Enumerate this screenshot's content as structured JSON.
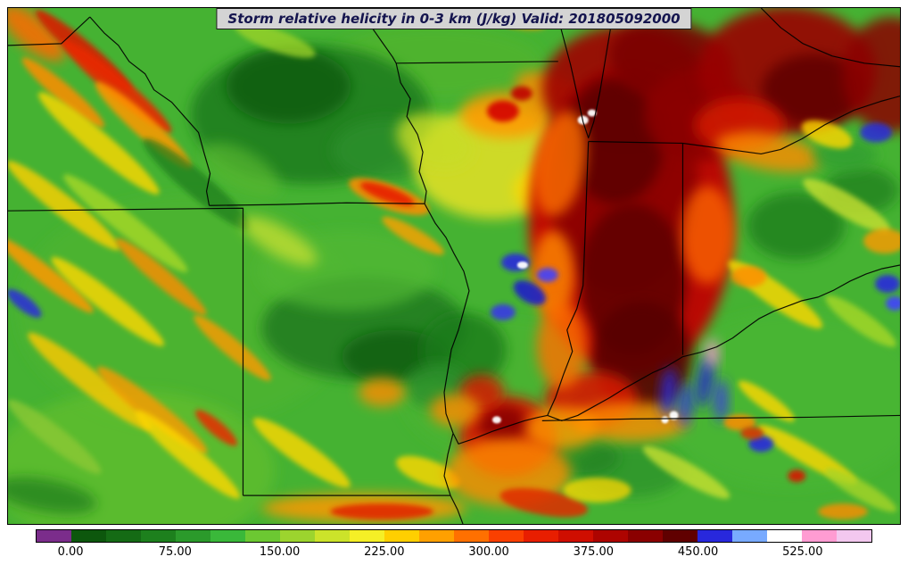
{
  "title": "Storm relative helicity in 0-3 km (J/kg) Valid: 201805092000",
  "colorbar": {
    "min": -25,
    "max": 575,
    "tick_values": [
      0,
      75,
      150,
      225,
      300,
      375,
      450,
      525
    ],
    "tick_labels": [
      "0.00",
      "75.00",
      "150.00",
      "225.00",
      "300.00",
      "375.00",
      "450.00",
      "525.00"
    ],
    "segment_colors": [
      "#7b2d8b",
      "#0d570d",
      "#156b15",
      "#1d801d",
      "#2b9a2b",
      "#3ab83a",
      "#6cc832",
      "#9cd42e",
      "#cce32a",
      "#f5ef26",
      "#ffcf00",
      "#ffa000",
      "#ff7000",
      "#fa4000",
      "#e81e00",
      "#cf0e00",
      "#ad0400",
      "#8a0000",
      "#600000",
      "#2828dc",
      "#78aaff",
      "#ffffff",
      "#ff9cd2",
      "#f3c8ef"
    ]
  },
  "map": {
    "base_color": "#45b232",
    "valid_time_label": "Valid: 201805092000",
    "blobs": [
      [
        200,
        340,
        190,
        130,
        0,
        "#4fb42e",
        0.55
      ],
      [
        140,
        520,
        160,
        90,
        0,
        "#6ec32c",
        0.5
      ],
      [
        560,
        430,
        120,
        80,
        0,
        "#4fb42e",
        0.4
      ],
      [
        880,
        440,
        150,
        100,
        0,
        "#49b832",
        0.45
      ],
      [
        480,
        60,
        120,
        40,
        0,
        "#57b62e",
        0.5
      ],
      [
        340,
        120,
        135,
        78,
        0,
        "#1e7e1e",
        0.9
      ],
      [
        315,
        88,
        70,
        42,
        0,
        "#135c13",
        0.85
      ],
      [
        425,
        160,
        60,
        35,
        0,
        "#2a8f2a",
        0.8
      ],
      [
        400,
        360,
        115,
        58,
        0,
        "#1d7a1d",
        0.85
      ],
      [
        435,
        392,
        60,
        30,
        0,
        "#135c13",
        0.8
      ],
      [
        380,
        295,
        100,
        45,
        0,
        "#52b832",
        0.7
      ],
      [
        512,
        385,
        48,
        42,
        0,
        "#1d7a1d",
        0.8
      ],
      [
        482,
        425,
        36,
        26,
        0,
        "#2a8f2a",
        0.8
      ],
      [
        885,
        245,
        55,
        38,
        0,
        "#1d7a1d",
        0.75
      ],
      [
        958,
        205,
        42,
        26,
        0,
        "#1d7a1d",
        0.7
      ],
      [
        700,
        520,
        60,
        30,
        0,
        "#2a8f2a",
        0.7
      ],
      [
        645,
        505,
        42,
        22,
        0,
        "#1d7a1d",
        0.6
      ],
      [
        545,
        175,
        90,
        62,
        0,
        "#e6e226",
        0.85
      ],
      [
        480,
        150,
        45,
        30,
        20,
        "#c8dc28",
        0.8
      ],
      [
        620,
        205,
        52,
        32,
        0,
        "#ffd700",
        0.8
      ],
      [
        560,
        120,
        52,
        26,
        0,
        "#ff9800",
        0.85
      ],
      [
        610,
        95,
        42,
        20,
        20,
        "#ff8c00",
        0.8
      ],
      [
        632,
        255,
        40,
        22,
        0,
        "#ff8c00",
        0.8
      ],
      [
        700,
        240,
        115,
        175,
        0,
        "#c00000",
        0.95
      ],
      [
        695,
        90,
        95,
        70,
        0,
        "#a00000",
        0.9
      ],
      [
        690,
        195,
        85,
        125,
        0,
        "#8a0000",
        0.9
      ],
      [
        682,
        150,
        55,
        70,
        0,
        "#5c0000",
        0.9
      ],
      [
        702,
        305,
        60,
        85,
        0,
        "#600000",
        0.9
      ],
      [
        712,
        392,
        56,
        62,
        0,
        "#560000",
        0.9
      ],
      [
        745,
        60,
        70,
        45,
        10,
        "#7a0000",
        0.9
      ],
      [
        775,
        120,
        60,
        52,
        0,
        "#8a0000",
        0.9
      ],
      [
        655,
        440,
        52,
        32,
        0,
        "#d41400",
        0.9
      ],
      [
        700,
        465,
        65,
        22,
        0,
        "#ff8c00",
        0.8
      ],
      [
        620,
        175,
        28,
        60,
        10,
        "#ff7000",
        0.8
      ],
      [
        612,
        300,
        24,
        50,
        0,
        "#ff8c00",
        0.8
      ],
      [
        622,
        380,
        28,
        48,
        0,
        "#ff7000",
        0.8
      ],
      [
        786,
        255,
        30,
        55,
        0,
        "#ff6a00",
        0.75
      ],
      [
        875,
        70,
        100,
        72,
        0,
        "#9a0000",
        0.9
      ],
      [
        905,
        92,
        58,
        40,
        0,
        "#600000",
        0.9
      ],
      [
        822,
        132,
        50,
        30,
        0,
        "#d41400",
        0.85
      ],
      [
        855,
        162,
        60,
        20,
        10,
        "#ff8c00",
        0.8
      ],
      [
        992,
        75,
        55,
        65,
        0,
        "#8a0000",
        0.85
      ],
      [
        940,
        165,
        36,
        18,
        0,
        "#2f9e2f",
        0.8
      ],
      [
        920,
        142,
        30,
        13,
        20,
        "#ffd700",
        0.8
      ],
      [
        975,
        140,
        18,
        11,
        0,
        "#2828dc",
        0.85
      ],
      [
        28,
        28,
        45,
        18,
        40,
        "#ff6a00",
        0.85
      ],
      [
        85,
        48,
        70,
        11,
        40,
        "#d41f00",
        0.9
      ],
      [
        122,
        88,
        80,
        12,
        40,
        "#e82800",
        0.9
      ],
      [
        62,
        95,
        60,
        10,
        40,
        "#ff8c00",
        0.85
      ],
      [
        152,
        132,
        72,
        12,
        42,
        "#ff9800",
        0.85
      ],
      [
        102,
        152,
        88,
        13,
        40,
        "#ffd700",
        0.8
      ],
      [
        212,
        198,
        78,
        14,
        40,
        "#1d7a1d",
        0.7
      ],
      [
        62,
        222,
        80,
        12,
        38,
        "#ffd000",
        0.8
      ],
      [
        132,
        242,
        88,
        12,
        38,
        "#a8d828",
        0.8
      ],
      [
        42,
        300,
        68,
        10,
        38,
        "#ff9800",
        0.85
      ],
      [
        112,
        330,
        80,
        12,
        38,
        "#ffd700",
        0.8
      ],
      [
        18,
        332,
        24,
        8,
        38,
        "#2828dc",
        0.85
      ],
      [
        172,
        302,
        66,
        10,
        40,
        "#ff8c00",
        0.8
      ],
      [
        92,
        420,
        88,
        13,
        38,
        "#ffc800",
        0.8
      ],
      [
        162,
        452,
        78,
        12,
        38,
        "#ff9800",
        0.8
      ],
      [
        52,
        482,
        66,
        12,
        38,
        "#8cc832",
        0.8
      ],
      [
        202,
        502,
        76,
        12,
        40,
        "#ffd700",
        0.8
      ],
      [
        234,
        472,
        30,
        8,
        40,
        "#e82800",
        0.85
      ],
      [
        42,
        548,
        58,
        18,
        10,
        "#1d7a1d",
        0.7
      ],
      [
        252,
        382,
        56,
        10,
        40,
        "#ff9800",
        0.8
      ],
      [
        300,
        36,
        48,
        12,
        20,
        "#a0d428",
        0.75
      ],
      [
        262,
        182,
        48,
        22,
        30,
        "#57b62e",
        0.7
      ],
      [
        575,
        14,
        30,
        9,
        10,
        "#ff8c00",
        0.8
      ],
      [
        560,
        16,
        13,
        6,
        20,
        "#e02800",
        0.85
      ],
      [
        428,
        212,
        48,
        14,
        20,
        "#ff8c00",
        0.85
      ],
      [
        426,
        209,
        32,
        8,
        20,
        "#e82000",
        0.9
      ],
      [
        455,
        256,
        40,
        9,
        30,
        "#ffa000",
        0.8
      ],
      [
        305,
        262,
        48,
        16,
        30,
        "#c8e030",
        0.75
      ],
      [
        330,
        500,
        66,
        13,
        35,
        "#ffd700",
        0.8
      ],
      [
        420,
        432,
        26,
        16,
        0,
        "#ff8c00",
        0.8
      ],
      [
        400,
        562,
        115,
        16,
        0,
        "#ff9800",
        0.85
      ],
      [
        420,
        566,
        58,
        9,
        0,
        "#e02800",
        0.9
      ],
      [
        472,
        522,
        38,
        14,
        20,
        "#ffd700",
        0.8
      ],
      [
        556,
        116,
        18,
        12,
        0,
        "#d40000",
        0.9
      ],
      [
        577,
        96,
        12,
        8,
        0,
        "#c00000",
        0.9
      ],
      [
        570,
        286,
        16,
        10,
        0,
        "#2828dc",
        0.9
      ],
      [
        586,
        320,
        20,
        11,
        30,
        "#2020c8",
        0.9
      ],
      [
        556,
        342,
        14,
        9,
        0,
        "#3838e6",
        0.9
      ],
      [
        606,
        300,
        12,
        8,
        0,
        "#4040ff",
        0.9
      ],
      [
        742,
        432,
        8,
        28,
        5,
        "#2828dc",
        0.9
      ],
      [
        761,
        446,
        7,
        26,
        5,
        "#3030e0",
        0.9
      ],
      [
        783,
        420,
        8,
        30,
        8,
        "#2424d0",
        0.9
      ],
      [
        801,
        441,
        7,
        24,
        0,
        "#3838e6",
        0.9
      ],
      [
        791,
        388,
        7,
        16,
        0,
        "#ff9cd2",
        0.9
      ],
      [
        988,
        310,
        14,
        10,
        0,
        "#2828dc",
        0.9
      ],
      [
        996,
        332,
        10,
        8,
        0,
        "#4040ff",
        0.9
      ],
      [
        942,
        222,
        56,
        13,
        30,
        "#c8e030",
        0.8
      ],
      [
        862,
        322,
        64,
        13,
        35,
        "#ffd700",
        0.8
      ],
      [
        958,
        352,
        48,
        11,
        35,
        "#a8d828",
        0.8
      ],
      [
        832,
        302,
        20,
        12,
        0,
        "#ff8c00",
        0.8
      ],
      [
        985,
        262,
        24,
        14,
        0,
        "#ff9800",
        0.8
      ],
      [
        762,
        522,
        56,
        11,
        30,
        "#c8e030",
        0.8
      ],
      [
        898,
        502,
        64,
        11,
        30,
        "#ffd700",
        0.8
      ],
      [
        958,
        542,
        46,
        10,
        30,
        "#a8d428",
        0.8
      ],
      [
        846,
        490,
        14,
        9,
        0,
        "#2828dc",
        0.9
      ],
      [
        886,
        526,
        10,
        7,
        0,
        "#d41400",
        0.9
      ],
      [
        938,
        566,
        28,
        9,
        0,
        "#ff8c00",
        0.8
      ],
      [
        852,
        442,
        38,
        9,
        35,
        "#ffd700",
        0.8
      ],
      [
        822,
        466,
        18,
        9,
        0,
        "#ff8c00",
        0.85
      ],
      [
        836,
        478,
        13,
        7,
        0,
        "#e03000",
        0.85
      ],
      [
        562,
        482,
        55,
        45,
        0,
        "#d41400",
        0.92
      ],
      [
        556,
        468,
        28,
        22,
        0,
        "#8a0000",
        0.9
      ],
      [
        562,
        522,
        70,
        38,
        0,
        "#ff8c00",
        0.8
      ],
      [
        622,
        472,
        40,
        24,
        0,
        "#ff9800",
        0.8
      ],
      [
        602,
        556,
        50,
        14,
        10,
        "#e02800",
        0.85
      ],
      [
        662,
        542,
        38,
        14,
        0,
        "#ffd700",
        0.75
      ],
      [
        532,
        432,
        25,
        20,
        0,
        "#d41400",
        0.85
      ],
      [
        502,
        452,
        28,
        18,
        0,
        "#ff8c00",
        0.8
      ],
      [
        646,
        126,
        6,
        5,
        0,
        "#ffffff",
        0.95
      ],
      [
        656,
        118,
        5,
        4,
        0,
        "#ffffff",
        0.95
      ],
      [
        578,
        289,
        6,
        4,
        0,
        "#ffffff",
        0.95
      ],
      [
        748,
        458,
        5,
        5,
        0,
        "#ffffff",
        0.95
      ],
      [
        738,
        463,
        4,
        4,
        0,
        "#ffffff",
        0.95
      ],
      [
        549,
        463,
        5,
        4,
        0,
        "#ffffff",
        0.95
      ]
    ]
  }
}
